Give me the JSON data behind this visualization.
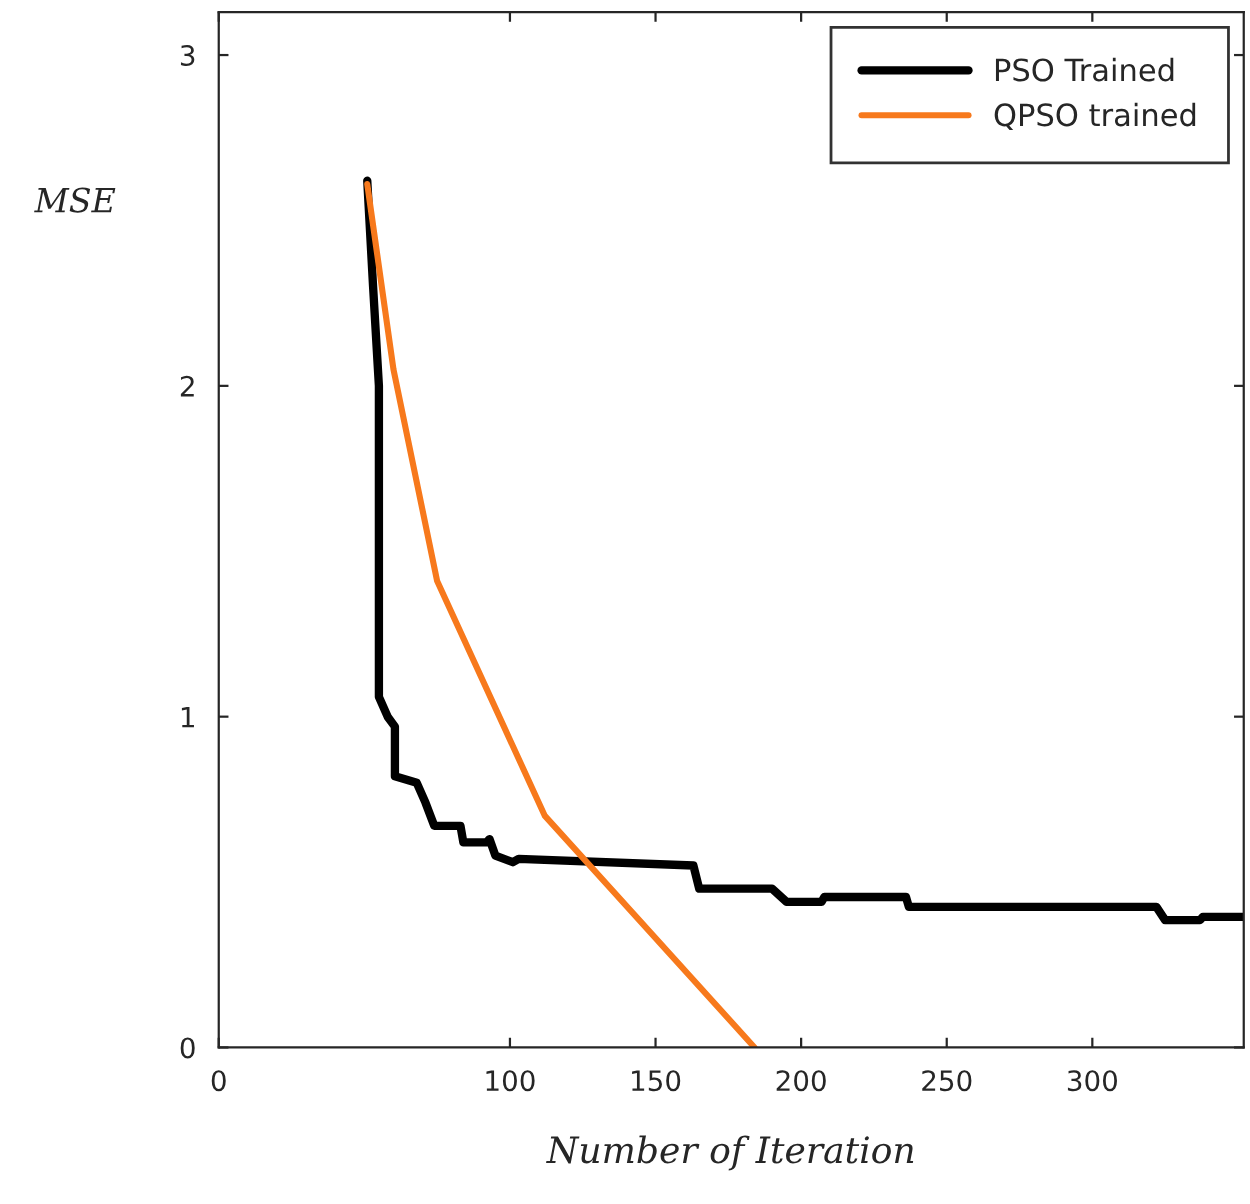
{
  "chart_data": {
    "type": "line",
    "xlabel": "Number of Iteration",
    "ylabel": "MSE",
    "xlim": [
      0,
      352
    ],
    "ylim": [
      0,
      3.13
    ],
    "xticks": [
      0,
      100,
      150,
      200,
      250,
      300
    ],
    "yticks": [
      0,
      1,
      2,
      3
    ],
    "grid": false,
    "legend": "top right",
    "marker": "none",
    "line_style": "solid",
    "series": [
      {
        "name": "PSO Trained",
        "color": "#000000",
        "x": [
          51,
          53,
          55,
          55,
          58,
          60.5,
          60.5,
          68,
          71,
          74,
          83,
          84,
          92,
          93,
          95,
          101,
          103,
          163,
          165,
          190,
          195,
          207,
          208,
          236,
          237,
          322,
          325,
          337,
          338,
          352
        ],
        "values": [
          2.62,
          2.3,
          2.0,
          1.06,
          1.0,
          0.97,
          0.82,
          0.8,
          0.74,
          0.67,
          0.67,
          0.62,
          0.62,
          0.63,
          0.58,
          0.56,
          0.57,
          0.55,
          0.48,
          0.48,
          0.44,
          0.44,
          0.455,
          0.455,
          0.425,
          0.425,
          0.385,
          0.385,
          0.395,
          0.395
        ]
      },
      {
        "name": "QPSO trained",
        "color": "#f7791c",
        "x": [
          51,
          60,
          75,
          112,
          184
        ],
        "values": [
          2.61,
          2.05,
          1.41,
          0.7,
          0
        ]
      }
    ]
  }
}
